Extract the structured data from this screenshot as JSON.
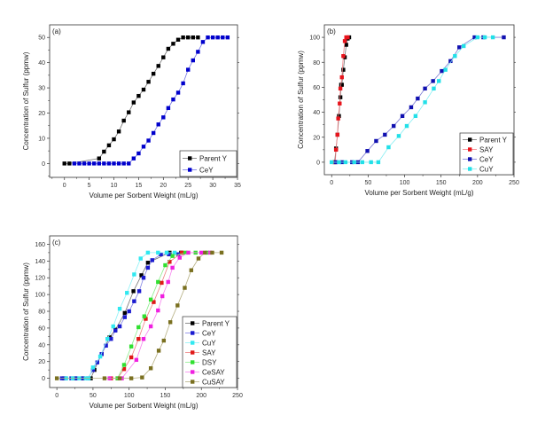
{
  "chart_data": [
    {
      "id": "a",
      "type": "line",
      "panel_label": "(a)",
      "title": "",
      "xlabel": "Volume per Sorbent Weight (mL/g)",
      "ylabel": "Concentration of Sulfur (ppmw)",
      "xlim": [
        -3,
        35
      ],
      "ylim": [
        -5.5,
        55
      ],
      "xticks": [
        0,
        5,
        10,
        15,
        20,
        25,
        30,
        35
      ],
      "yticks": [
        0,
        10,
        20,
        30,
        40,
        50
      ],
      "grid": false,
      "legend_position": "bottom-right",
      "series": [
        {
          "name": "Parent Y",
          "color": "#000000",
          "x": [
            0,
            1,
            7,
            8,
            9,
            10,
            11,
            12,
            13,
            14,
            15,
            16,
            17,
            18,
            19,
            20,
            21,
            22,
            23,
            24,
            25,
            26,
            27
          ],
          "y": [
            0,
            0,
            2,
            4.7,
            7.2,
            9.6,
            12.7,
            17,
            20.3,
            24.2,
            26.8,
            29.3,
            32.4,
            35.6,
            38.7,
            42.1,
            45.5,
            47.5,
            49.1,
            50,
            50,
            50,
            50
          ]
        },
        {
          "name": "CeY",
          "color": "#0000cc",
          "x": [
            2,
            3,
            4,
            5,
            6,
            7,
            8,
            9,
            10,
            11,
            12,
            13,
            14,
            15,
            16,
            17,
            18,
            19,
            20,
            21,
            22,
            23,
            24,
            25,
            26,
            27,
            28,
            29,
            30,
            31,
            32,
            33
          ],
          "y": [
            0,
            0,
            0,
            0,
            0,
            0,
            0,
            0,
            0,
            0,
            0,
            0,
            2,
            4,
            6.7,
            9.1,
            12.1,
            15.5,
            18.3,
            22,
            25.4,
            28.1,
            31.8,
            37.2,
            40.9,
            44.3,
            48.2,
            50,
            50,
            50,
            50,
            50
          ]
        }
      ]
    },
    {
      "id": "b",
      "type": "line",
      "panel_label": "(b)",
      "title": "",
      "xlabel": "Volume per Sorbent Weight (mL/g)",
      "ylabel": "Concentration of Sulfur (ppmw)",
      "xlim": [
        -10,
        250
      ],
      "ylim": [
        -10,
        110
      ],
      "xticks": [
        0,
        50,
        100,
        150,
        200,
        250
      ],
      "yticks": [
        0,
        20,
        40,
        60,
        80,
        100
      ],
      "grid": false,
      "legend_position": "bottom-right",
      "series": [
        {
          "name": "Parent Y",
          "color": "#000000",
          "x": [
            4,
            6,
            8,
            10,
            12,
            13,
            14,
            16,
            18,
            20,
            22,
            24
          ],
          "y": [
            0,
            11,
            22,
            37,
            52,
            62,
            62,
            74,
            84,
            94,
            99,
            100
          ]
        },
        {
          "name": "SAY",
          "color": "#e8141c",
          "x": [
            5,
            6,
            8,
            9,
            11,
            12,
            14,
            16,
            18,
            20,
            22
          ],
          "y": [
            0,
            10,
            22,
            35,
            47,
            59,
            68,
            85,
            97,
            100,
            100
          ]
        },
        {
          "name": "CeY",
          "color": "#1010b0",
          "x": [
            6,
            14,
            28,
            36,
            49,
            61,
            73,
            85,
            97,
            109,
            118,
            128,
            139,
            151,
            163,
            175,
            196,
            208,
            236
          ],
          "y": [
            0,
            0,
            0,
            0,
            9,
            17,
            22,
            29,
            37,
            44,
            51,
            59,
            65,
            73,
            81,
            92,
            100,
            100,
            100
          ]
        },
        {
          "name": "CuY",
          "color": "#22e0e8",
          "x": [
            0,
            10,
            19,
            31,
            42,
            54,
            64,
            78,
            92,
            103,
            115,
            128,
            140,
            147,
            156,
            169,
            181,
            200,
            210,
            221
          ],
          "y": [
            0,
            0,
            0,
            0,
            0,
            0,
            0,
            12,
            21,
            29,
            37,
            48,
            59,
            65,
            74,
            85,
            93,
            100,
            100,
            100
          ]
        }
      ]
    },
    {
      "id": "c",
      "type": "line",
      "panel_label": "(c)",
      "title": "",
      "xlabel": "Volume per Sorbent Weight (mL/g)",
      "ylabel": "Concentration of Sulfur (ppmw)",
      "xlim": [
        -10,
        250
      ],
      "ylim": [
        -11,
        170
      ],
      "xticks": [
        0,
        50,
        100,
        150,
        200,
        250
      ],
      "yticks": [
        0,
        20,
        40,
        60,
        80,
        100,
        120,
        140,
        160
      ],
      "grid": false,
      "legend_position": "bottom-right",
      "series": [
        {
          "name": "Parent Y",
          "color": "#000000",
          "x": [
            10,
            25,
            36,
            47,
            52,
            62,
            73,
            81,
            94,
            106,
            117,
            126,
            156,
            172
          ],
          "y": [
            0,
            0,
            0,
            0,
            10,
            29,
            49,
            58,
            78,
            104,
            123,
            138,
            150,
            150
          ]
        },
        {
          "name": "CeY",
          "color": "#1a1ad0",
          "x": [
            7,
            12,
            20,
            27,
            36,
            43,
            50,
            56,
            62,
            68,
            75,
            81,
            87,
            94,
            100,
            107,
            114,
            120,
            126,
            132,
            144,
            155,
            168
          ],
          "y": [
            0,
            0,
            0,
            0,
            0,
            0,
            10,
            19,
            29,
            39,
            47,
            57,
            62,
            73,
            80,
            92,
            104,
            120,
            132,
            141,
            148,
            148,
            148
          ]
        },
        {
          "name": "CuY",
          "color": "#30e8f0",
          "x": [
            13,
            22,
            31,
            40,
            44,
            50,
            60,
            70,
            78,
            87,
            97,
            107,
            116,
            126,
            140,
            152,
            163
          ],
          "y": [
            0,
            0,
            0,
            0,
            0,
            13,
            26,
            47,
            62,
            83,
            102,
            124,
            143,
            150,
            150,
            150,
            150
          ]
        },
        {
          "name": "SAY",
          "color": "#e01818",
          "x": [
            75,
            84,
            93,
            103,
            113,
            123,
            134,
            145,
            156,
            173
          ],
          "y": [
            0,
            0,
            11,
            25,
            47,
            71,
            91,
            114,
            139,
            150
          ]
        },
        {
          "name": "DSY",
          "color": "#30e030",
          "x": [
            84,
            93,
            103,
            113,
            121,
            130,
            140,
            150,
            160,
            178,
            192,
            208
          ],
          "y": [
            0,
            16,
            38,
            61,
            74,
            94,
            115,
            135,
            146,
            150,
            150,
            150
          ]
        },
        {
          "name": "CeSAY",
          "color": "#f020e0",
          "x": [
            73,
            90,
            110,
            120,
            130,
            140,
            146,
            154,
            160,
            170,
            182,
            200,
            212
          ],
          "y": [
            0,
            0,
            22,
            47,
            62,
            81,
            98,
            115,
            132,
            144,
            150,
            150,
            150
          ]
        },
        {
          "name": "CuSAY",
          "color": "#7a7020",
          "x": [
            0,
            66,
            87,
            103,
            118,
            130,
            141,
            148,
            157,
            167,
            177,
            186,
            196,
            205,
            215,
            228
          ],
          "y": [
            0,
            0,
            0,
            0,
            1,
            12,
            33,
            45,
            67,
            87,
            108,
            129,
            143,
            150,
            150,
            150
          ]
        }
      ]
    }
  ]
}
